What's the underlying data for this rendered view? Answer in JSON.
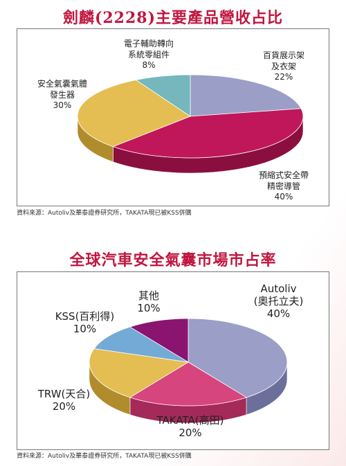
{
  "charts": [
    {
      "title": "劍麟(2228)主要產品營收占比",
      "source": "資料來源：Autoliv及華泰證券研究所，TAKATA現已被KSS併購",
      "chart_data": {
        "type": "pie",
        "slices": [
          {
            "label_lines": [
              "百貨展示架",
              "及衣架"
            ],
            "pct_text": "22%",
            "value": 22,
            "color": "#9b9ec6",
            "side": "#6c6f9c"
          },
          {
            "label_lines": [
              "預縮式安全帶",
              "精密導管"
            ],
            "pct_text": "40%",
            "value": 40,
            "color": "#c0175a",
            "side": "#8a0f3e"
          },
          {
            "label_lines": [
              "安全氣囊氣體",
              "發生器"
            ],
            "pct_text": "30%",
            "value": 30,
            "color": "#e4be52",
            "side": "#b08c2c"
          },
          {
            "label_lines": [
              "電子輔助轉向",
              "系統零組件"
            ],
            "pct_text": "8%",
            "value": 8,
            "color": "#75b7bd",
            "side": "#4c8990"
          }
        ]
      }
    },
    {
      "title": "全球汽車安全氣囊市場市占率",
      "source": "資料來源：Autoliv及華泰證券研究所，TAKATA現已被KSS併購",
      "chart_data": {
        "type": "pie",
        "slices": [
          {
            "label_lines": [
              "Autoliv",
              "(奧托立夫)"
            ],
            "pct_text": "40%",
            "value": 40,
            "color": "#9b9ec6",
            "side": "#6c6f9c"
          },
          {
            "label_lines": [
              "TAKATA(高田)"
            ],
            "pct_text": "20%",
            "value": 20,
            "color": "#d6457d",
            "side": "#a32a59"
          },
          {
            "label_lines": [
              "TRW(天合)"
            ],
            "pct_text": "20%",
            "value": 20,
            "color": "#e4be52",
            "side": "#b08c2c"
          },
          {
            "label_lines": [
              "KSS(百利得)"
            ],
            "pct_text": "10%",
            "value": 10,
            "color": "#74aad6",
            "side": "#4d7fab"
          },
          {
            "label_lines": [
              "其他"
            ],
            "pct_text": "10%",
            "value": 10,
            "color": "#8a1470",
            "side": "#5e0c4c"
          }
        ]
      }
    }
  ]
}
